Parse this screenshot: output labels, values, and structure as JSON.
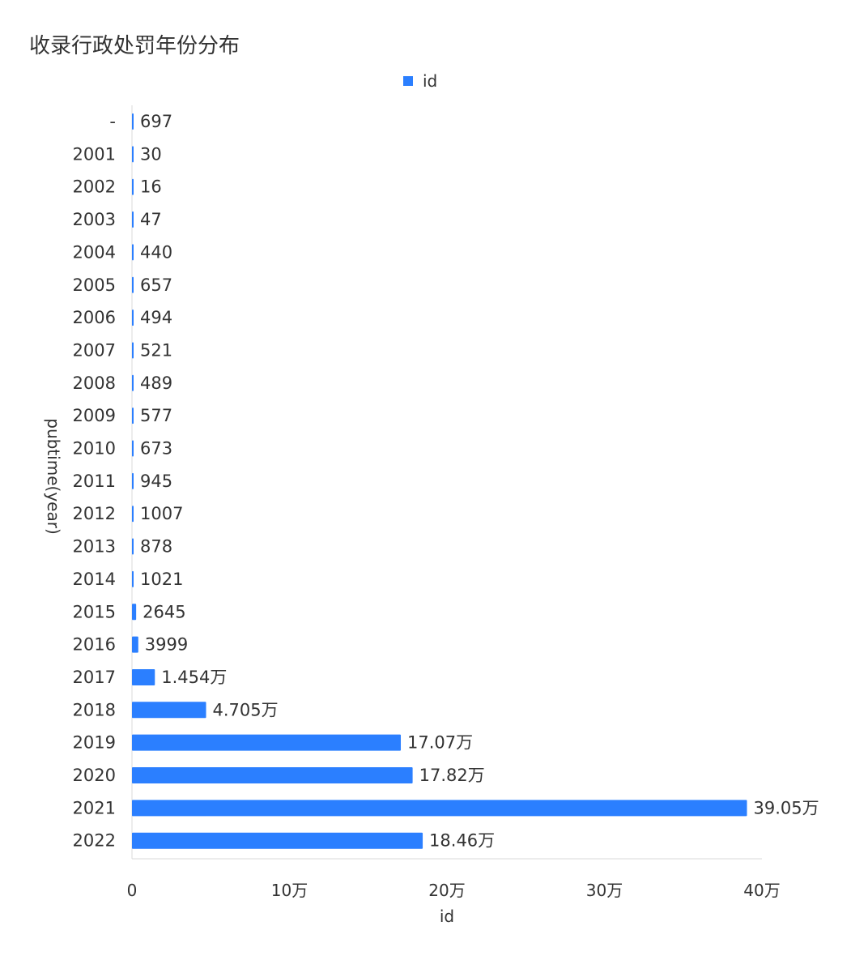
{
  "chart_data": {
    "type": "bar",
    "orientation": "horizontal",
    "title": "收录行政处罚年份分布",
    "xlabel": "id",
    "ylabel": "pubtime(year)",
    "legend": [
      "id"
    ],
    "legend_position": "top-center",
    "bar_color": "#2b7fff",
    "grid": false,
    "xlim": [
      0,
      400000
    ],
    "x_ticks": [
      0,
      100000,
      200000,
      300000,
      400000
    ],
    "x_tick_labels": [
      "0",
      "10万",
      "20万",
      "30万",
      "40万"
    ],
    "categories": [
      "-",
      "2001",
      "2002",
      "2003",
      "2004",
      "2005",
      "2006",
      "2007",
      "2008",
      "2009",
      "2010",
      "2011",
      "2012",
      "2013",
      "2014",
      "2015",
      "2016",
      "2017",
      "2018",
      "2019",
      "2020",
      "2021",
      "2022"
    ],
    "series": [
      {
        "name": "id",
        "values": [
          697,
          30,
          16,
          47,
          440,
          657,
          494,
          521,
          489,
          577,
          673,
          945,
          1007,
          878,
          1021,
          2645,
          3999,
          14540,
          47050,
          170700,
          178200,
          390500,
          184600
        ],
        "labels": [
          "697",
          "30",
          "16",
          "47",
          "440",
          "657",
          "494",
          "521",
          "489",
          "577",
          "673",
          "945",
          "1007",
          "878",
          "1021",
          "2645",
          "3999",
          "1.454万",
          "4.705万",
          "17.07万",
          "17.82万",
          "39.05万",
          "18.46万"
        ]
      }
    ]
  }
}
